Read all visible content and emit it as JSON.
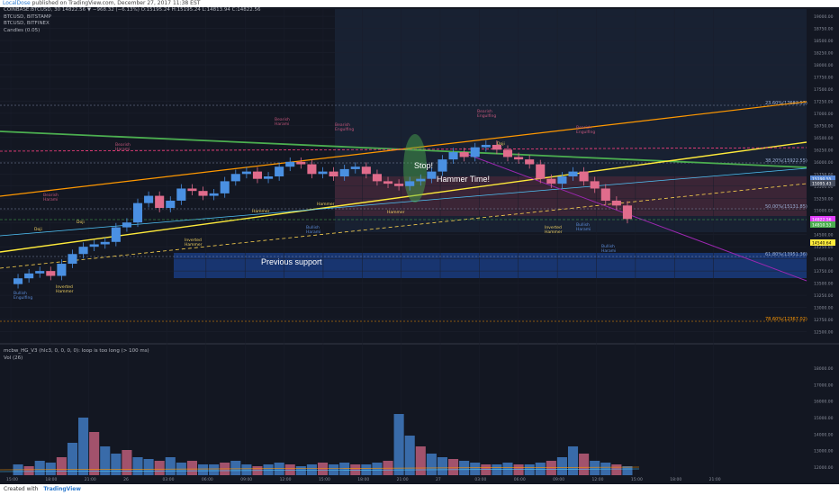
{
  "header": {
    "publisher": "LocalDose",
    "published_text": "published on TradingView.com, December 27, 2017 11:38 EST",
    "ohlc_line": "COINBASE:BTCUSD, 30  14822.56 ▼ −968.32 (−6.13%) O:15195.24 H:15195.24 L:14813.94 C:14822.56"
  },
  "legend": {
    "symbol": "BTCUSD, 30, COINBASE",
    "overlays": [
      "BTCUSD, BITSTAMP",
      "BTCUSD, BITFINEX",
      "Candles (0.05)"
    ]
  },
  "indicator_legend": {
    "line1": "mcbw_HG_V3 (hlc3, 0, 0, 0, 0): loop is too long (> 100 ms)",
    "line2": "Vol (26)"
  },
  "annotations": {
    "stop": "Stop!",
    "hammer_time": "Hammer Time!",
    "previous_support": "Previous support"
  },
  "fib_labels": [
    "23.60%(17683.53)",
    "38.20%(15922.55)",
    "50.00%(15131.85)",
    "61.80%(13951.36)",
    "78.60%(12367.02)"
  ],
  "price_badges": [
    "15190.55",
    "15095.43",
    "14822.56",
    "14810.53",
    "14540.64"
  ],
  "pattern_labels": {
    "doji": "Doji",
    "hammer": "Hammer",
    "inverted_hammer": "Inverted\nHammer",
    "bearish_harami": "Bearish\nHarami",
    "bullish_harami": "Bullish\nHarami",
    "bearish_engulfing": "Bearish\nEngulfing",
    "bullish_engulfing": "Bullish\nEngulfing"
  },
  "footer": {
    "created_with": "Created with",
    "brand": "TradingView"
  },
  "colors": {
    "bg": "#131722",
    "up": "#4a90e2",
    "down": "#e06c8c",
    "fib_lines": "#2196f3",
    "green_trend": "#4caf50",
    "yellow_trend": "#ffeb3b",
    "orange_trend": "#ff9800",
    "purple_trend": "#9c27b0",
    "support_zone": "#1e4fb0"
  },
  "chart_data": {
    "type": "candlestick",
    "symbol": "COINBASE:BTCUSD",
    "interval": "30",
    "y_axis_ticks": [
      12500,
      12750,
      13000,
      13250,
      13500,
      13750,
      14000,
      14250,
      14500,
      14750,
      15000,
      15250,
      15500,
      15750,
      16000,
      16250,
      16500,
      16750,
      17000,
      17250,
      17500,
      17750,
      18000,
      18250,
      18500,
      18750,
      19000
    ],
    "x_axis_ticks": [
      "15:00",
      "18:00",
      "21:00",
      "26",
      "03:00",
      "06:00",
      "09:00",
      "12:00",
      "15:00",
      "18:00",
      "21:00",
      "27",
      "03:00",
      "06:00",
      "09:00",
      "12:00",
      "15:00",
      "18:00",
      "21:00"
    ],
    "closes": [
      13600,
      13700,
      13750,
      13650,
      13900,
      14100,
      14250,
      14300,
      14350,
      14650,
      14750,
      15150,
      15300,
      15050,
      15200,
      15450,
      15400,
      15300,
      15350,
      15600,
      15750,
      15800,
      15650,
      15700,
      15900,
      16000,
      15950,
      15750,
      15800,
      15700,
      15850,
      15900,
      15750,
      15600,
      15550,
      15500,
      15600,
      15650,
      15800,
      16050,
      16200,
      16100,
      16300,
      16350,
      16250,
      16100,
      16050,
      15950,
      15650,
      15550,
      15700,
      15800,
      15600,
      15450,
      15200,
      15100,
      14822.56
    ],
    "volume_ticks": [
      12000,
      13000,
      14000,
      15000,
      16000,
      17000,
      18000
    ],
    "volumes": [
      0.3,
      0.25,
      0.4,
      0.35,
      0.5,
      0.9,
      1.6,
      1.2,
      0.8,
      0.6,
      0.7,
      0.5,
      0.45,
      0.4,
      0.5,
      0.35,
      0.4,
      0.3,
      0.3,
      0.35,
      0.4,
      0.3,
      0.25,
      0.3,
      0.35,
      0.3,
      0.25,
      0.3,
      0.35,
      0.3,
      0.35,
      0.3,
      0.3,
      0.35,
      0.4,
      1.7,
      1.1,
      0.8,
      0.6,
      0.5,
      0.45,
      0.4,
      0.35,
      0.3,
      0.3,
      0.35,
      0.3,
      0.3,
      0.35,
      0.4,
      0.5,
      0.8,
      0.6,
      0.4,
      0.35,
      0.3,
      0.25
    ]
  }
}
